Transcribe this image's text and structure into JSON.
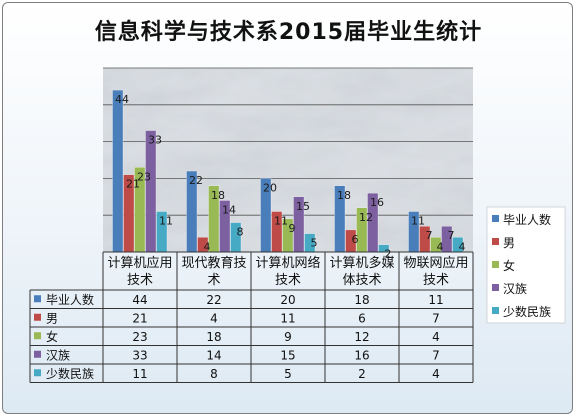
{
  "chart_data": {
    "type": "bar",
    "title": "信息科学与技术系2015届毕业生统计",
    "categories": [
      "计算机应用技术",
      "现代教育技术",
      "计算机网络技术",
      "计算机多媒体技术",
      "物联网应用技术"
    ],
    "category_lines": [
      [
        "计算机应用",
        "技术"
      ],
      [
        "现代教育技",
        "术"
      ],
      [
        "计算机网络",
        "技术"
      ],
      [
        "计算机多媒",
        "体技术"
      ],
      [
        "物联网应用",
        "技术"
      ]
    ],
    "series": [
      {
        "name": "毕业人数",
        "color": "#4a7ebb",
        "values": [
          44,
          22,
          20,
          18,
          11
        ]
      },
      {
        "name": "男",
        "color": "#be4b48",
        "values": [
          21,
          4,
          11,
          6,
          7
        ]
      },
      {
        "name": "女",
        "color": "#98b954",
        "values": [
          23,
          18,
          9,
          12,
          4
        ]
      },
      {
        "name": "汉族",
        "color": "#7d60a0",
        "values": [
          33,
          14,
          15,
          16,
          7
        ]
      },
      {
        "name": "少数民族",
        "color": "#46aac5",
        "values": [
          11,
          8,
          5,
          2,
          4
        ]
      }
    ],
    "ylim": [
      0,
      50
    ],
    "grid": true,
    "legend": "right",
    "data_table": true
  }
}
